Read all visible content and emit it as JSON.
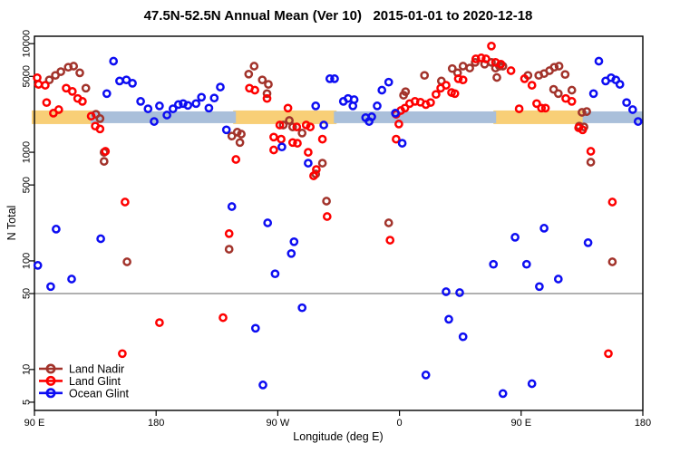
{
  "chart_data": {
    "type": "scatter",
    "title": "47.5N-52.5N Annual Mean (Ver 10)   2015-01-01 to 2020-12-18",
    "xlabel": "Longitude (deg E)",
    "ylabel": "N Total",
    "x_axis": {
      "note": "longitude axis runs eastward from 90E wrapping the globe: 90E,180,90W,0,90E,180",
      "range_deg": [
        90,
        540
      ],
      "ticks": [
        {
          "deg": 90,
          "label": "90 E"
        },
        {
          "deg": 180,
          "label": "180"
        },
        {
          "deg": 270,
          "label": "90 W"
        },
        {
          "deg": 360,
          "label": "0"
        },
        {
          "deg": 450,
          "label": "90 E"
        },
        {
          "deg": 540,
          "label": "180"
        }
      ]
    },
    "y_axis": {
      "scale": "log",
      "range": [
        4.2,
        11700
      ],
      "ticks": [
        5,
        10,
        50,
        100,
        500,
        1000,
        5000,
        10000
      ]
    },
    "reference_line": {
      "value": 50,
      "color": "#808080"
    },
    "mean_bands": {
      "value_center": 2100,
      "value_range": [
        1800,
        2450
      ],
      "colors": {
        "land": "#F8CF77",
        "ocean": "#A9BFDA"
      },
      "segments": [
        {
          "series": "land",
          "from_deg": 90,
          "to_deg": 131.5
        },
        {
          "series": "ocean",
          "from_deg": 131.5,
          "to_deg": 239
        },
        {
          "series": "land",
          "from_deg": 239,
          "to_deg": 311.5
        },
        {
          "series": "ocean",
          "from_deg": 311.5,
          "to_deg": 431.5
        },
        {
          "series": "land",
          "from_deg": 431.5,
          "to_deg": 495.5
        },
        {
          "series": "ocean",
          "from_deg": 495.5,
          "to_deg": 540
        }
      ]
    },
    "legend": {
      "position": "bottom-left"
    },
    "series": [
      {
        "name": "Land Nadir",
        "color": "#A2332B",
        "points": [
          [
            101,
            4640
          ],
          [
            105.5,
            5100
          ],
          [
            109.5,
            5520
          ],
          [
            115,
            6070
          ],
          [
            119,
            6210
          ],
          [
            123.5,
            5390
          ],
          [
            128,
            3890
          ],
          [
            135.5,
            2240
          ],
          [
            138.5,
            2040
          ],
          [
            141.5,
            1000
          ],
          [
            141.5,
            824
          ],
          [
            158.5,
            98
          ],
          [
            234,
            128
          ],
          [
            248.5,
            5240
          ],
          [
            252.5,
            6210
          ],
          [
            258.5,
            4640
          ],
          [
            263,
            4220
          ],
          [
            262,
            3470
          ],
          [
            236,
            1410
          ],
          [
            240,
            1530
          ],
          [
            243,
            1470
          ],
          [
            242,
            1230
          ],
          [
            274,
            1780
          ],
          [
            278.5,
            1960
          ],
          [
            281,
            1710
          ],
          [
            288,
            1500
          ],
          [
            298,
            631
          ],
          [
            303,
            794
          ],
          [
            306,
            355
          ],
          [
            352,
            224
          ],
          [
            363,
            3350
          ],
          [
            364.5,
            3610
          ],
          [
            378.5,
            5100
          ],
          [
            391,
            4530
          ],
          [
            399,
            5890
          ],
          [
            403,
            5390
          ],
          [
            407,
            6210
          ],
          [
            412,
            5960
          ],
          [
            416,
            6730
          ],
          [
            423,
            6480
          ],
          [
            428,
            6730
          ],
          [
            431,
            5960
          ],
          [
            434,
            6210
          ],
          [
            432,
            4880
          ],
          [
            436.5,
            6210
          ],
          [
            455,
            5100
          ],
          [
            463,
            5100
          ],
          [
            467,
            5300
          ],
          [
            471,
            5640
          ],
          [
            474.5,
            6070
          ],
          [
            478,
            6210
          ],
          [
            482.5,
            5200
          ],
          [
            474,
            3800
          ],
          [
            477.5,
            3470
          ],
          [
            487.5,
            3730
          ],
          [
            495,
            2330
          ],
          [
            498.5,
            2370
          ],
          [
            493,
            1740
          ],
          [
            496.5,
            1710
          ],
          [
            501.5,
            810
          ],
          [
            517.5,
            98
          ]
        ]
      },
      {
        "name": "Land Glint",
        "color": "#FE0000",
        "points": [
          [
            92,
            4850
          ],
          [
            93,
            4220
          ],
          [
            98,
            4140
          ],
          [
            99,
            2870
          ],
          [
            104,
            2290
          ],
          [
            108,
            2470
          ],
          [
            113.5,
            3890
          ],
          [
            118,
            3630
          ],
          [
            122,
            3130
          ],
          [
            125.5,
            2940
          ],
          [
            132,
            2150
          ],
          [
            135,
            1740
          ],
          [
            138.5,
            1640
          ],
          [
            142.5,
            1020
          ],
          [
            157,
            348
          ],
          [
            155,
            14
          ],
          [
            182.5,
            27
          ],
          [
            229.5,
            30
          ],
          [
            234,
            178
          ],
          [
            249,
            3890
          ],
          [
            253,
            3730
          ],
          [
            262,
            3130
          ],
          [
            277.5,
            2550
          ],
          [
            271.5,
            1780
          ],
          [
            284,
            1710
          ],
          [
            291,
            1780
          ],
          [
            294,
            1710
          ],
          [
            267,
            1380
          ],
          [
            272.5,
            1320
          ],
          [
            267,
            1050
          ],
          [
            281,
            1230
          ],
          [
            284.5,
            1210
          ],
          [
            292.5,
            1000
          ],
          [
            239,
            858
          ],
          [
            298.5,
            694
          ],
          [
            296.5,
            607
          ],
          [
            303,
            1320
          ],
          [
            306.5,
            256
          ],
          [
            353,
            155
          ],
          [
            357.5,
            2240
          ],
          [
            359.5,
            1820
          ],
          [
            357.5,
            1320
          ],
          [
            361,
            2420
          ],
          [
            364,
            2550
          ],
          [
            367.5,
            2810
          ],
          [
            371.5,
            2940
          ],
          [
            375.5,
            2890
          ],
          [
            379.5,
            2750
          ],
          [
            383,
            2870
          ],
          [
            387,
            3410
          ],
          [
            390.5,
            3890
          ],
          [
            394.5,
            4140
          ],
          [
            398.5,
            3550
          ],
          [
            401,
            3470
          ],
          [
            403.5,
            4750
          ],
          [
            407,
            4640
          ],
          [
            416.5,
            7240
          ],
          [
            420.5,
            7390
          ],
          [
            424,
            7240
          ],
          [
            428,
            9500
          ],
          [
            431,
            6730
          ],
          [
            435,
            6480
          ],
          [
            442.5,
            5640
          ],
          [
            452.5,
            4750
          ],
          [
            458,
            4140
          ],
          [
            448.5,
            2510
          ],
          [
            461.5,
            2810
          ],
          [
            465,
            2550
          ],
          [
            468,
            2550
          ],
          [
            483,
            3130
          ],
          [
            487.5,
            2940
          ],
          [
            492.5,
            1680
          ],
          [
            495.5,
            1610
          ],
          [
            501.5,
            1020
          ],
          [
            514.5,
            14
          ],
          [
            517.5,
            348
          ]
        ]
      },
      {
        "name": "Ocean Glint",
        "color": "#0D0DF2",
        "points": [
          [
            143.5,
            3470
          ],
          [
            148.5,
            6900
          ],
          [
            153,
            4530
          ],
          [
            158,
            4640
          ],
          [
            162.5,
            4320
          ],
          [
            168.5,
            2940
          ],
          [
            174,
            2510
          ],
          [
            178.5,
            1920
          ],
          [
            182.5,
            2670
          ],
          [
            188,
            2200
          ],
          [
            192.5,
            2510
          ],
          [
            196.5,
            2750
          ],
          [
            200,
            2810
          ],
          [
            203.5,
            2700
          ],
          [
            209.5,
            2810
          ],
          [
            213.5,
            3210
          ],
          [
            219,
            2550
          ],
          [
            223,
            3160
          ],
          [
            227.5,
            3980
          ],
          [
            232,
            1610
          ],
          [
            273,
            1120
          ],
          [
            292.5,
            794
          ],
          [
            298,
            2670
          ],
          [
            304,
            1780
          ],
          [
            308.5,
            4750
          ],
          [
            312,
            4750
          ],
          [
            318.5,
            2940
          ],
          [
            322,
            3130
          ],
          [
            325.5,
            2670
          ],
          [
            326.5,
            3050
          ],
          [
            335,
            2080
          ],
          [
            337.5,
            1920
          ],
          [
            339.5,
            2120
          ],
          [
            343.5,
            2670
          ],
          [
            347,
            3730
          ],
          [
            352,
            4420
          ],
          [
            357,
            2290
          ],
          [
            362,
            1210
          ],
          [
            503.5,
            3470
          ],
          [
            507.5,
            6900
          ],
          [
            512.5,
            4530
          ],
          [
            516.5,
            4850
          ],
          [
            520,
            4640
          ],
          [
            523,
            4220
          ],
          [
            528,
            2870
          ],
          [
            532.5,
            2470
          ],
          [
            536.5,
            1920
          ],
          [
            92.5,
            91
          ],
          [
            102,
            58
          ],
          [
            106,
            196
          ],
          [
            117.5,
            68
          ],
          [
            139,
            160
          ],
          [
            236,
            316
          ],
          [
            253.5,
            24
          ],
          [
            259,
            7.2
          ],
          [
            262.5,
            224
          ],
          [
            268,
            76
          ],
          [
            280,
            117
          ],
          [
            282,
            150
          ],
          [
            288,
            37
          ],
          [
            379.5,
            8.9
          ],
          [
            394.5,
            52
          ],
          [
            396.5,
            29
          ],
          [
            404.5,
            51
          ],
          [
            407,
            20
          ],
          [
            429.5,
            93
          ],
          [
            436.5,
            6
          ],
          [
            445.5,
            165
          ],
          [
            454,
            93
          ],
          [
            458,
            7.4
          ],
          [
            463.5,
            58
          ],
          [
            467,
            200
          ],
          [
            477.5,
            68
          ],
          [
            499.5,
            147
          ]
        ]
      }
    ]
  }
}
